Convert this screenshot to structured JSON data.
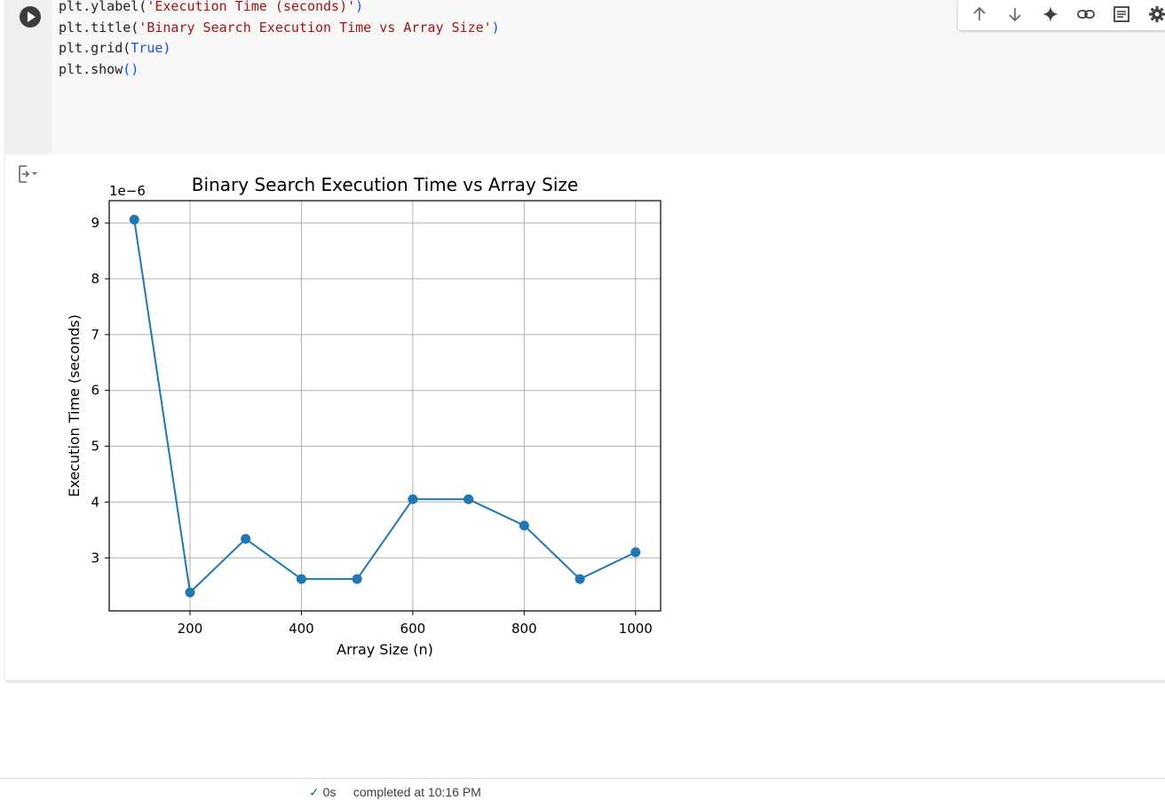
{
  "code_lines": [
    {
      "parts": [
        {
          "t": "plt.ylabel(",
          "c": "plain"
        },
        {
          "t": "'Execution Time (seconds)'",
          "c": "str"
        },
        {
          "t": ")",
          "c": "kw"
        }
      ]
    },
    {
      "parts": [
        {
          "t": "plt.title(",
          "c": "plain"
        },
        {
          "t": "'Binary Search Execution Time vs Array Size'",
          "c": "str"
        },
        {
          "t": ")",
          "c": "kw"
        }
      ]
    },
    {
      "parts": [
        {
          "t": "plt.grid(",
          "c": "plain"
        },
        {
          "t": "True)",
          "c": "kw"
        }
      ]
    },
    {
      "parts": [
        {
          "t": "plt.show",
          "c": "plain"
        },
        {
          "t": "()",
          "c": "kw"
        }
      ]
    }
  ],
  "toolbar": {
    "icons": [
      "arrow-up-icon",
      "arrow-down-icon",
      "sparkle-icon",
      "link-icon",
      "comment-icon",
      "gear-icon"
    ]
  },
  "status": {
    "check": "✓",
    "duration": "0s",
    "completed_text": "completed at 10:16 PM"
  },
  "colors": {
    "line": "#1f77b4",
    "grid": "#b0b0b0",
    "string": "#a31515",
    "keyword": "#1750eb"
  },
  "chart_data": {
    "type": "line",
    "title": "Binary Search Execution Time vs Array Size",
    "xlabel": "Array Size (n)",
    "ylabel": "Execution Time (seconds)",
    "y_offset_label": "1e−6",
    "x": [
      100,
      200,
      300,
      400,
      500,
      600,
      700,
      800,
      900,
      1000
    ],
    "y": [
      9.06,
      2.38,
      3.34,
      2.62,
      2.62,
      4.05,
      4.05,
      3.58,
      2.62,
      3.1
    ],
    "xticks": [
      200,
      400,
      600,
      800,
      1000
    ],
    "yticks": [
      3,
      4,
      5,
      6,
      7,
      8,
      9
    ],
    "xlim": [
      55,
      1045
    ],
    "ylim": [
      2.05,
      9.4
    ],
    "grid": true,
    "marker": "circle"
  }
}
